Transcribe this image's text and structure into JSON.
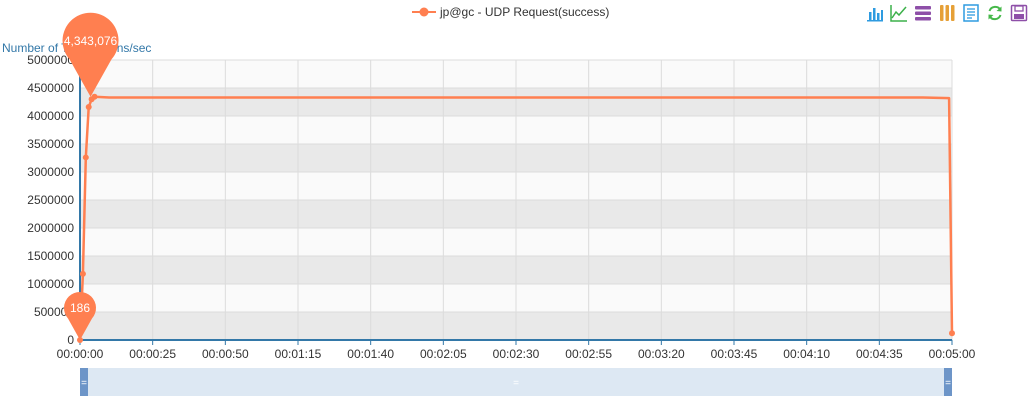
{
  "legend": {
    "series_label": "jp@gc - UDP Request(success)"
  },
  "toolbox": {
    "icons": [
      "bar-chart-icon",
      "line-chart-icon",
      "stack-icon",
      "tiled-icon",
      "data-view-icon",
      "restore-icon",
      "save-image-icon"
    ],
    "colors": {
      "blue": "#2e9be0",
      "green": "#3cb14a",
      "purple": "#8e4fa8",
      "orange": "#e6a037",
      "refresh": "#46b84a"
    }
  },
  "colors": {
    "series": "#ff7f50",
    "axis": "#3378a8",
    "band": "#e9e9e9",
    "grid": "#dcdcdc",
    "zoom_bg": "#dde8f3",
    "zoom_handle": "#6d95c8"
  },
  "chart_data": {
    "type": "line",
    "title": "",
    "ylabel": "Number of Transactions/sec",
    "xlabel": "",
    "ylim": [
      0,
      5000000
    ],
    "y_ticks": [
      "0",
      "500000",
      "1000000",
      "1500000",
      "2000000",
      "2500000",
      "3000000",
      "3500000",
      "4000000",
      "4500000",
      "5000000"
    ],
    "xlim_seconds": [
      0,
      300
    ],
    "x_ticks": [
      "00:00:00",
      "00:00:25",
      "00:00:50",
      "00:01:15",
      "00:01:40",
      "00:02:05",
      "00:02:30",
      "00:02:55",
      "00:03:20",
      "00:03:45",
      "00:04:10",
      "00:04:35",
      "00:05:00"
    ],
    "grid": true,
    "legend_position": "top-center",
    "series": [
      {
        "name": "jp@gc - UDP Request(success)",
        "x": [
          "00:00:00",
          "00:00:01",
          "00:00:02",
          "00:00:03",
          "00:00:04",
          "00:00:05",
          "00:00:10",
          "00:00:30",
          "00:01:00",
          "00:01:30",
          "00:02:00",
          "00:02:30",
          "00:03:00",
          "00:03:30",
          "00:04:00",
          "00:04:20",
          "00:04:30",
          "00:04:40",
          "00:04:50",
          "00:04:59",
          "00:05:00"
        ],
        "values": [
          186,
          1180000,
          3260000,
          4160000,
          4300000,
          4343076,
          4330000,
          4330000,
          4330000,
          4330000,
          4330000,
          4330000,
          4330000,
          4330000,
          4330000,
          4330000,
          4330000,
          4330000,
          4330000,
          4320000,
          120000
        ]
      }
    ],
    "markers": [
      {
        "label": "4,343,076",
        "x": "00:00:05",
        "value": 4343076
      },
      {
        "label": "186",
        "x": "00:00:00",
        "value": 186
      }
    ]
  }
}
